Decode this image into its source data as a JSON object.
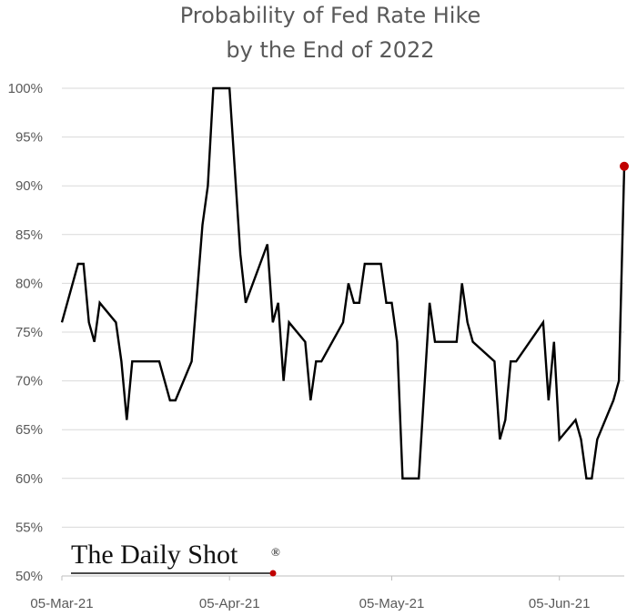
{
  "colors": {
    "line": "#000000",
    "grid": "#d9d9d9",
    "marker": "#c00000",
    "text": "#595959"
  },
  "branding": {
    "text": "The Daily Shot",
    "mark": "®"
  },
  "chart_data": {
    "type": "line",
    "title": [
      "Probability of Fed Rate Hike",
      "by the End of 2022"
    ],
    "xlabel": "",
    "ylabel": "",
    "grid": true,
    "ylim": [
      50,
      100
    ],
    "y_ticks": [
      50,
      55,
      60,
      65,
      70,
      75,
      80,
      85,
      90,
      95,
      100
    ],
    "y_tick_labels": [
      "50%",
      "55%",
      "60%",
      "65%",
      "70%",
      "75%",
      "80%",
      "85%",
      "90%",
      "95%",
      "100%"
    ],
    "x_range": [
      "2021-03-05",
      "2021-06-17"
    ],
    "x_ticks": [
      "2021-03-05",
      "2021-04-05",
      "2021-05-05",
      "2021-06-05"
    ],
    "x_tick_labels": [
      "05-Mar-21",
      "05-Apr-21",
      "05-May-21",
      "05-Jun-21"
    ],
    "series": [
      {
        "name": "Probability of Fed Rate Hike by the End of 2022",
        "points": [
          [
            "2021-03-05",
            76
          ],
          [
            "2021-03-08",
            82
          ],
          [
            "2021-03-09",
            82
          ],
          [
            "2021-03-10",
            76
          ],
          [
            "2021-03-11",
            74
          ],
          [
            "2021-03-12",
            78
          ],
          [
            "2021-03-15",
            76
          ],
          [
            "2021-03-16",
            72
          ],
          [
            "2021-03-17",
            66
          ],
          [
            "2021-03-18",
            72
          ],
          [
            "2021-03-23",
            72
          ],
          [
            "2021-03-24",
            70
          ],
          [
            "2021-03-25",
            68
          ],
          [
            "2021-03-26",
            68
          ],
          [
            "2021-03-29",
            72
          ],
          [
            "2021-03-31",
            86
          ],
          [
            "2021-04-01",
            90
          ],
          [
            "2021-04-02",
            100
          ],
          [
            "2021-04-05",
            100
          ],
          [
            "2021-04-07",
            83
          ],
          [
            "2021-04-08",
            78
          ],
          [
            "2021-04-12",
            84
          ],
          [
            "2021-04-13",
            76
          ],
          [
            "2021-04-14",
            78
          ],
          [
            "2021-04-15",
            70
          ],
          [
            "2021-04-16",
            76
          ],
          [
            "2021-04-19",
            74
          ],
          [
            "2021-04-20",
            68
          ],
          [
            "2021-04-21",
            72
          ],
          [
            "2021-04-22",
            72
          ],
          [
            "2021-04-26",
            76
          ],
          [
            "2021-04-27",
            80
          ],
          [
            "2021-04-28",
            78
          ],
          [
            "2021-04-29",
            78
          ],
          [
            "2021-04-30",
            82
          ],
          [
            "2021-05-03",
            82
          ],
          [
            "2021-05-04",
            78
          ],
          [
            "2021-05-05",
            78
          ],
          [
            "2021-05-06",
            74
          ],
          [
            "2021-05-07",
            60
          ],
          [
            "2021-05-10",
            60
          ],
          [
            "2021-05-12",
            78
          ],
          [
            "2021-05-13",
            74
          ],
          [
            "2021-05-17",
            74
          ],
          [
            "2021-05-18",
            80
          ],
          [
            "2021-05-19",
            76
          ],
          [
            "2021-05-20",
            74
          ],
          [
            "2021-05-24",
            72
          ],
          [
            "2021-05-25",
            64
          ],
          [
            "2021-05-26",
            66
          ],
          [
            "2021-05-27",
            72
          ],
          [
            "2021-05-28",
            72
          ],
          [
            "2021-06-02",
            76
          ],
          [
            "2021-06-03",
            68
          ],
          [
            "2021-06-04",
            74
          ],
          [
            "2021-06-05",
            64
          ],
          [
            "2021-06-08",
            66
          ],
          [
            "2021-06-09",
            64
          ],
          [
            "2021-06-10",
            60
          ],
          [
            "2021-06-11",
            60
          ],
          [
            "2021-06-12",
            64
          ],
          [
            "2021-06-15",
            68
          ],
          [
            "2021-06-16",
            70
          ],
          [
            "2021-06-17",
            92
          ]
        ]
      }
    ],
    "highlight_point": [
      "2021-06-17",
      92
    ]
  }
}
